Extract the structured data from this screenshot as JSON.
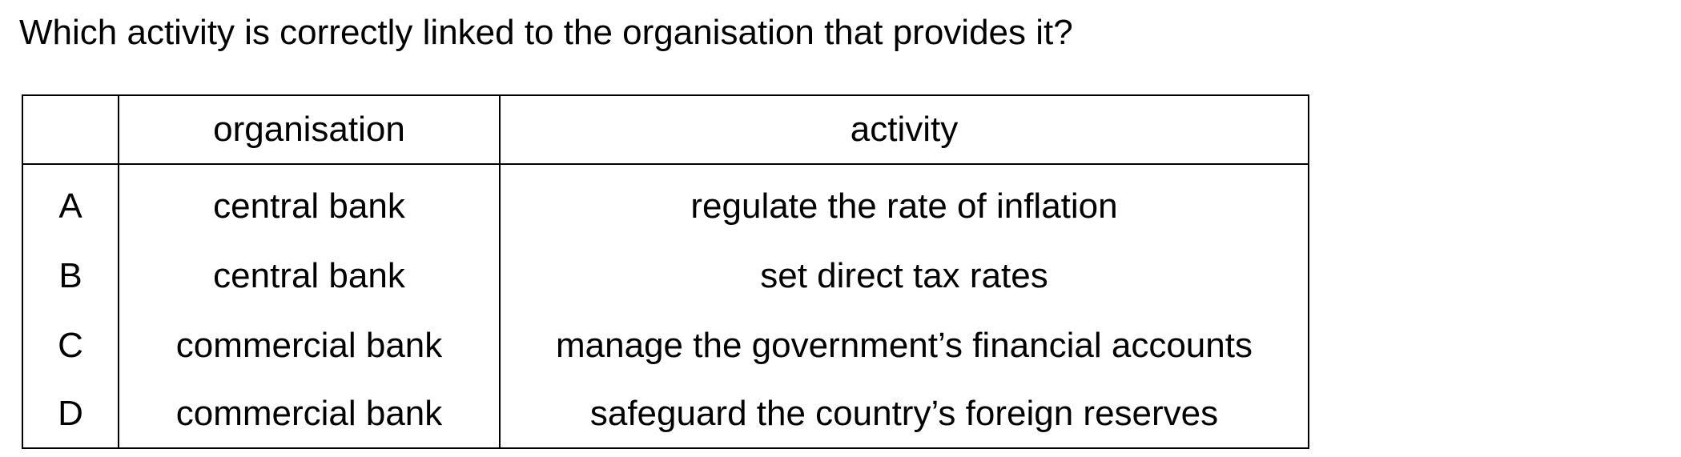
{
  "question": "Which activity is correctly linked to the organisation that provides it?",
  "table": {
    "headers": [
      "",
      "organisation",
      "activity"
    ],
    "rows": [
      {
        "letter": "A",
        "organisation": "central bank",
        "activity": "regulate the rate of inflation"
      },
      {
        "letter": "B",
        "organisation": "central bank",
        "activity": "set direct tax rates"
      },
      {
        "letter": "C",
        "organisation": "commercial bank",
        "activity": "manage the government’s financial accounts"
      },
      {
        "letter": "D",
        "organisation": "commercial bank",
        "activity": "safeguard the country’s foreign reserves"
      }
    ]
  }
}
